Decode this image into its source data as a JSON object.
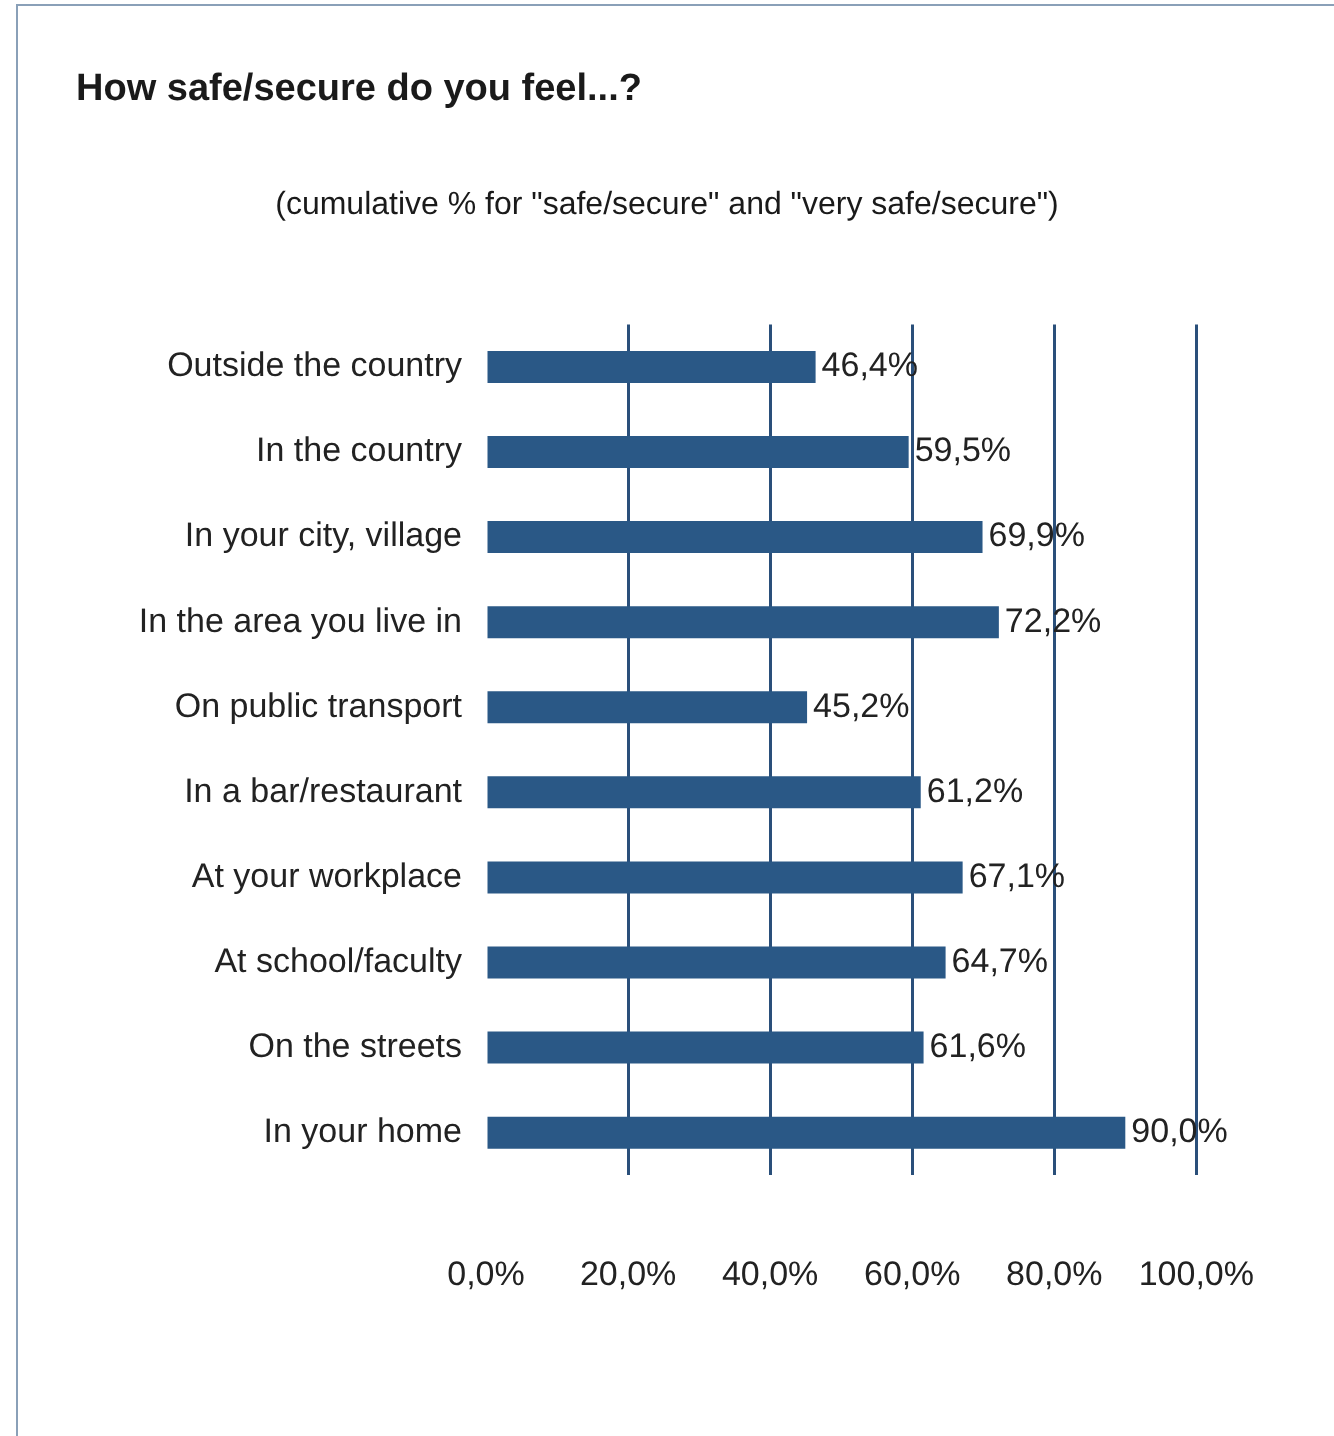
{
  "chart_data": {
    "type": "bar",
    "orientation": "horizontal",
    "title": "How safe/secure do you feel...?",
    "subtitle": "(cumulative % for \"safe/secure\" and \"very safe/secure\")",
    "categories": [
      "Outside the country",
      "In the country",
      "In your city, village",
      "In the area you live in",
      "On public transport",
      "In a bar/restaurant",
      "At your workplace",
      "At school/faculty",
      "On the streets",
      "In your home"
    ],
    "values": [
      46.4,
      59.5,
      69.9,
      72.2,
      45.2,
      61.2,
      67.1,
      64.7,
      61.6,
      90.0
    ],
    "value_labels": [
      "46,4%",
      "59,5%",
      "69,9%",
      "72,2%",
      "45,2%",
      "61,2%",
      "67,1%",
      "64,7%",
      "61,6%",
      "90,0%"
    ],
    "color": "#2a5886",
    "xlim": [
      0,
      100
    ],
    "xticks": [
      {
        "value": 0,
        "label": "0,0%"
      },
      {
        "value": 20,
        "label": "20,0%"
      },
      {
        "value": 40,
        "label": "40,0%"
      },
      {
        "value": 60,
        "label": "60,0%"
      },
      {
        "value": 80,
        "label": "80,0%"
      },
      {
        "value": 100,
        "label": "100,0%"
      }
    ],
    "grid": "x",
    "legend": false
  }
}
